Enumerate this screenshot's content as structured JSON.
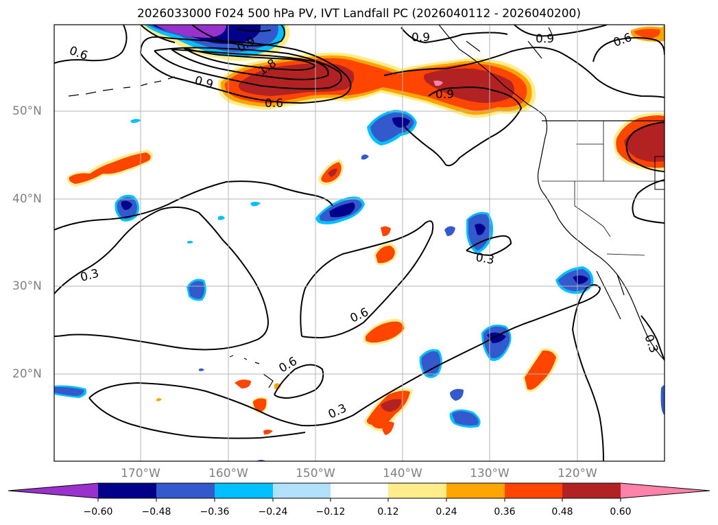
{
  "title": "2026033000 F024 500 hPa PV, IVT Landfall PC (2026040112 - 2026040200)",
  "lat_labels": [
    "50°N",
    "40°N",
    "30°N",
    "20°N"
  ],
  "lon_labels": [
    "170°W",
    "160°W",
    "150°W",
    "140°W",
    "130°W",
    "120°W"
  ],
  "contour_labels": [
    "0.6",
    "0.9",
    "1.8",
    "0.9",
    "0.6",
    "0.9",
    "0.9",
    "0.6",
    "0.9",
    "0.3",
    "0.3",
    "0.6",
    "0.6",
    "0.3",
    "0.3"
  ],
  "colorbar": {
    "ticks": [
      "−0.60",
      "−0.48",
      "−0.36",
      "−0.24",
      "−0.12",
      "0.12",
      "0.24",
      "0.36",
      "0.48",
      "0.60"
    ],
    "colors": [
      "#9932cc",
      "#00008b",
      "#3459cc",
      "#00bfff",
      "#b0e0fa",
      "#ffffff",
      "#ffec8b",
      "#ffa500",
      "#ff4500",
      "#b22222",
      "#ff82ab"
    ]
  },
  "palette": {
    "purple": "#9932cc",
    "navy": "#00008b",
    "royal": "#3459cc",
    "cyan": "#00bfff",
    "lightblue": "#b0e0fa",
    "yellow": "#ffec8b",
    "orange": "#ffa500",
    "redorange": "#ff4500",
    "firebrick": "#b22222",
    "pink": "#ff82ab"
  }
}
